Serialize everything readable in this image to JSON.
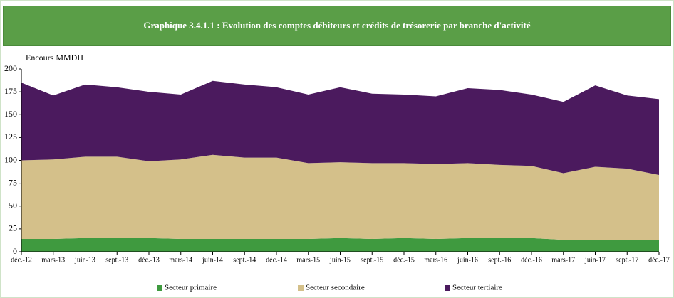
{
  "chart_data": {
    "type": "stacked_area",
    "title": "Graphique 3.4.1.1 : Evolution des comptes débiteurs et crédits de trésorerie par branche d'activité",
    "y_label": "Encours MMDH",
    "categories": [
      "déc.-12",
      "mars-13",
      "juin-13",
      "sept.-13",
      "déc.-13",
      "mars-14",
      "juin-14",
      "sept.-14",
      "déc.-14",
      "mars-15",
      "juin-15",
      "sept.-15",
      "déc.-15",
      "mars-16",
      "juin-16",
      "sept.-16",
      "déc.-16",
      "mars-17",
      "juin-17",
      "sept.-17",
      "déc.-17"
    ],
    "series": [
      {
        "name": "Secteur primaire",
        "color": "#3f9a3f",
        "values": [
          14,
          14,
          15,
          15,
          15,
          14,
          14,
          14,
          14,
          14,
          15,
          14,
          15,
          14,
          15,
          15,
          15,
          13,
          13,
          13,
          13
        ]
      },
      {
        "name": "Secteur secondaire",
        "color": "#d4c08a",
        "values": [
          86,
          87,
          89,
          89,
          84,
          87,
          92,
          89,
          89,
          83,
          83,
          83,
          82,
          82,
          82,
          80,
          79,
          73,
          80,
          78,
          71
        ]
      },
      {
        "name": "Secteur tertiaire",
        "color": "#4b1a5e",
        "values": [
          85,
          70,
          79,
          76,
          76,
          71,
          81,
          80,
          77,
          75,
          82,
          76,
          75,
          74,
          82,
          82,
          78,
          78,
          89,
          80,
          83
        ]
      }
    ],
    "ylim": [
      0,
      200
    ],
    "yticks": [
      0,
      25,
      50,
      75,
      100,
      125,
      150,
      175,
      200
    ],
    "legend": "bottom"
  }
}
